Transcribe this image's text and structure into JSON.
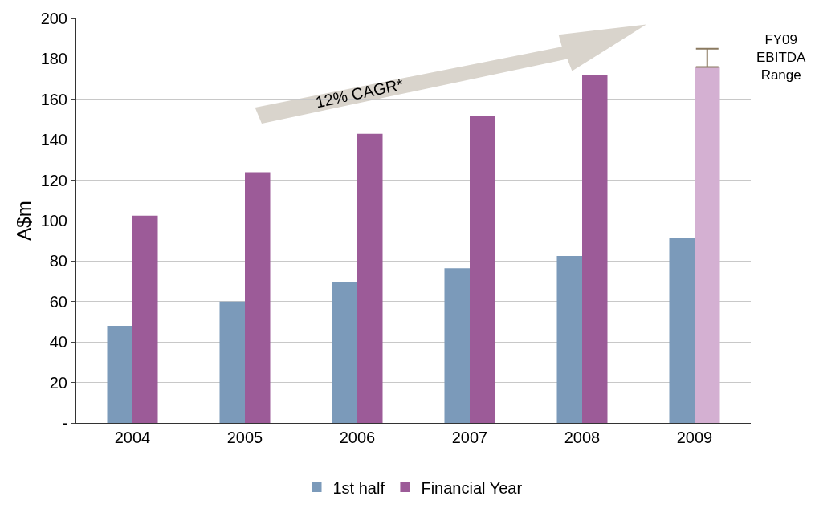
{
  "chart_data": {
    "type": "bar",
    "ylabel": "A$m",
    "categories": [
      "2004",
      "2005",
      "2006",
      "2007",
      "2008",
      "2009"
    ],
    "series": [
      {
        "name": "1st half",
        "color": "#7b9aba",
        "values": [
          48,
          60,
          69.5,
          76.5,
          82.5,
          91.5
        ]
      },
      {
        "name": "Financial Year",
        "color": "#9c5b98",
        "colors": [
          "#9c5b98",
          "#9c5b98",
          "#9c5b98",
          "#9c5b98",
          "#9c5b98",
          "#d4b0d2"
        ],
        "values": [
          102.5,
          124,
          143,
          152,
          172,
          176
        ],
        "errors": [
          null,
          null,
          null,
          null,
          null,
          [
            176,
            185
          ]
        ]
      }
    ],
    "ylim": [
      0,
      200
    ],
    "yticks": [
      {
        "value": 0,
        "label": "-"
      },
      20,
      40,
      60,
      80,
      100,
      120,
      140,
      160,
      180,
      200
    ],
    "grid": "y",
    "legend": "bottom",
    "annotations": [
      "12% CAGR*",
      "FY09 EBITDA Range"
    ]
  }
}
